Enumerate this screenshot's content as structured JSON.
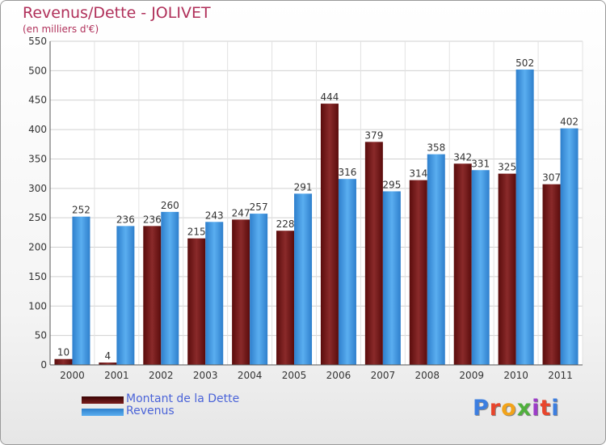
{
  "title": "Revenus/Dette - JOLIVET",
  "subtitle": "(en milliers d'€)",
  "logo_text": "Proxiti",
  "logo_colors": [
    "#3c7ee0",
    "#e8452c",
    "#f2a31a",
    "#4fb03c",
    "#9c3cc8",
    "#e8452c",
    "#3c7ee0"
  ],
  "chart_data": {
    "type": "bar",
    "title": "Revenus/Dette - JOLIVET",
    "subtitle": "(en milliers d'€)",
    "categories": [
      "2000",
      "2001",
      "2002",
      "2003",
      "2004",
      "2005",
      "2006",
      "2007",
      "2008",
      "2009",
      "2010",
      "2011"
    ],
    "series": [
      {
        "name": "Montant de la Dette",
        "color": "#7a1c1c",
        "values": [
          10,
          4,
          236,
          215,
          247,
          228,
          444,
          379,
          314,
          342,
          325,
          307
        ]
      },
      {
        "name": "Revenus",
        "color": "#4f9fe0",
        "values": [
          252,
          236,
          260,
          243,
          257,
          291,
          316,
          295,
          358,
          331,
          502,
          402
        ]
      }
    ],
    "ylim": [
      0,
      550
    ],
    "yticks": [
      0,
      50,
      100,
      150,
      200,
      250,
      300,
      350,
      400,
      450,
      500,
      550
    ],
    "grid": true,
    "legend_position": "bottom-left"
  }
}
